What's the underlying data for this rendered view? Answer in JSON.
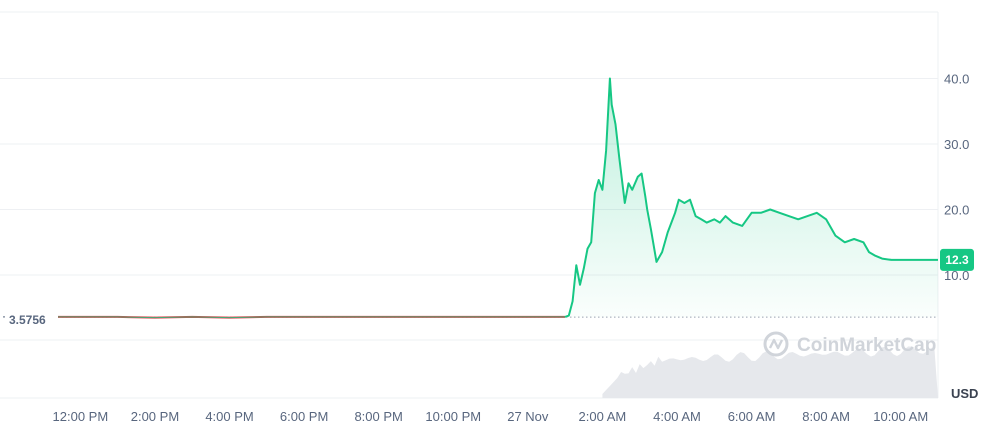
{
  "chart_data": {
    "type": "line",
    "currency": "USD",
    "watermark": "CoinMarketCap",
    "reference_label": "3.5756",
    "reference_value": 3.5756,
    "last_value_label": "12.3",
    "last_value": 12.3,
    "y_ticks": [
      {
        "value": 10,
        "label": "10.0"
      },
      {
        "value": 20,
        "label": "20.0"
      },
      {
        "value": 30,
        "label": "30.0"
      },
      {
        "value": 40,
        "label": "40.0"
      }
    ],
    "ylim": [
      0,
      50
    ],
    "x_ticks": [
      "12:00 PM",
      "2:00 PM",
      "4:00 PM",
      "6:00 PM",
      "8:00 PM",
      "10:00 PM",
      "27 Nov",
      "2:00 AM",
      "4:00 AM",
      "6:00 AM",
      "8:00 AM",
      "10:00 AM"
    ],
    "x_tick_hours": [
      0,
      2,
      4,
      6,
      8,
      10,
      12,
      14,
      16,
      18,
      20,
      22
    ],
    "x_range_hours": [
      -0.6,
      23.0
    ],
    "grid": true,
    "colors": {
      "up": "#16c784",
      "down": "#ea3943",
      "grid": "#eef0f3",
      "text": "#58667e",
      "volume": "#e6e8ec"
    },
    "series": [
      {
        "x": [
          -0.6,
          0.0,
          1.0,
          2.0,
          3.0,
          4.0,
          5.0,
          6.0,
          7.0,
          8.0,
          9.0,
          10.0,
          11.0,
          12.0,
          13.0,
          13.1,
          13.2,
          13.3,
          13.4,
          13.5,
          13.6,
          13.7,
          13.8,
          13.9,
          14.0,
          14.1,
          14.2,
          14.25,
          14.35,
          14.45,
          14.6,
          14.7,
          14.8,
          14.95,
          15.05,
          15.15,
          15.2,
          15.3,
          15.45,
          15.6,
          15.75,
          15.85,
          15.95,
          16.05,
          16.2,
          16.35,
          16.5,
          16.65,
          16.8,
          17.0,
          17.15,
          17.3,
          17.5,
          17.75,
          18.0,
          18.25,
          18.5,
          18.75,
          19.0,
          19.25,
          19.5,
          19.75,
          20.0,
          20.25,
          20.5,
          20.75,
          21.0,
          21.15,
          21.3,
          21.5,
          21.75,
          22.0,
          22.2,
          22.35,
          22.5,
          22.7,
          22.85,
          23.0
        ],
        "y": [
          3.6,
          3.6,
          3.6,
          3.5,
          3.6,
          3.5,
          3.6,
          3.6,
          3.6,
          3.6,
          3.6,
          3.6,
          3.6,
          3.6,
          3.6,
          3.8,
          6.0,
          11.5,
          8.5,
          11.0,
          14.0,
          15.0,
          22.5,
          24.5,
          23.0,
          29.0,
          40.0,
          36.0,
          33.0,
          28.0,
          21.0,
          24.0,
          23.0,
          25.0,
          25.5,
          22.0,
          20.0,
          17.0,
          12.0,
          13.5,
          16.5,
          18.0,
          19.5,
          21.5,
          21.0,
          21.5,
          19.0,
          18.5,
          18.0,
          18.5,
          18.0,
          19.0,
          18.0,
          17.5,
          19.5,
          19.5,
          20.0,
          19.5,
          19.0,
          18.5,
          19.0,
          19.5,
          18.5,
          16.0,
          15.0,
          15.5,
          15.0,
          13.5,
          13.0,
          12.5,
          12.3,
          12.3,
          12.3,
          12.3,
          12.3,
          12.3,
          12.3,
          12.3
        ]
      }
    ]
  }
}
